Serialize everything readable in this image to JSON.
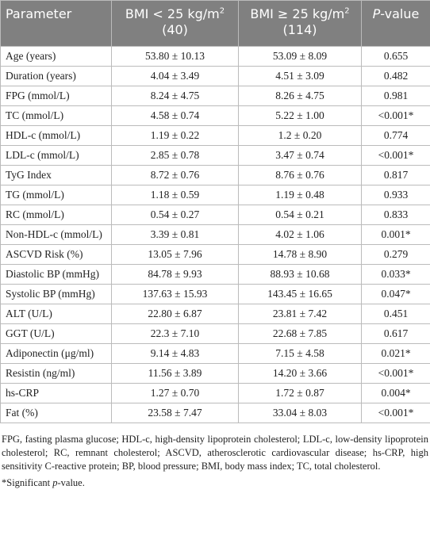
{
  "table": {
    "header": [
      {
        "text": "Parameter"
      },
      {
        "text": "BMI < 25 kg/m",
        "sup": "2",
        "sub": "(40)"
      },
      {
        "text": "BMI ≥ 25 kg/m",
        "sup": "2",
        "sub": "(114)"
      },
      {
        "italic": "P",
        "text": "-value"
      }
    ],
    "rows": [
      [
        "Age (years)",
        "53.80 ± 10.13",
        "53.09 ± 8.09",
        "0.655"
      ],
      [
        "Duration (years)",
        "4.04 ± 3.49",
        "4.51 ± 3.09",
        "0.482"
      ],
      [
        "FPG (mmol/L)",
        "8.24 ± 4.75",
        "8.26 ± 4.75",
        "0.981"
      ],
      [
        "TC (mmol/L)",
        "4.58 ± 0.74",
        "5.22 ± 1.00",
        "<0.001*"
      ],
      [
        "HDL-c (mmol/L)",
        "1.19 ± 0.22",
        "1.2 ± 0.20",
        "0.774"
      ],
      [
        "LDL-c (mmol/L)",
        "2.85 ± 0.78",
        "3.47 ± 0.74",
        "<0.001*"
      ],
      [
        "TyG Index",
        "8.72 ± 0.76",
        "8.76 ± 0.76",
        "0.817"
      ],
      [
        "TG (mmol/L)",
        "1.18 ± 0.59",
        "1.19 ± 0.48",
        "0.933"
      ],
      [
        "RC (mmol/L)",
        "0.54 ± 0.27",
        "0.54 ± 0.21",
        "0.833"
      ],
      [
        "Non-HDL-c (mmol/L)",
        "3.39 ± 0.81",
        "4.02 ± 1.06",
        "0.001*"
      ],
      [
        "ASCVD Risk (%)",
        "13.05 ± 7.96",
        "14.78 ± 8.90",
        "0.279"
      ],
      [
        "Diastolic BP (mmHg)",
        "84.78 ± 9.93",
        "88.93 ± 10.68",
        "0.033*"
      ],
      [
        "Systolic BP (mmHg)",
        "137.63 ± 15.93",
        "143.45 ± 16.65",
        "0.047*"
      ],
      [
        "ALT (U/L)",
        "22.80 ± 6.87",
        "23.81 ± 7.42",
        "0.451"
      ],
      [
        "GGT (U/L)",
        "22.3 ± 7.10",
        "22.68 ± 7.85",
        "0.617"
      ],
      [
        "Adiponectin (μg/ml)",
        "9.14 ± 4.83",
        "7.15 ± 4.58",
        "0.021*"
      ],
      [
        "Resistin (ng/ml)",
        "11.56 ± 3.89",
        "14.20 ± 3.66",
        "<0.001*"
      ],
      [
        "hs-CRP",
        "1.27 ± 0.70",
        "1.72 ± 0.87",
        "0.004*"
      ],
      [
        "Fat (%)",
        "23.58 ± 7.47",
        "33.04 ± 8.03",
        "<0.001*"
      ]
    ]
  },
  "footnote": {
    "abbreviations": "FPG, fasting plasma glucose; HDL-c, high-density lipoprotein cholesterol; LDL-c, low-density lipoprotein cholesterol; RC, remnant cholesterol; ASCVD, atherosclerotic cardiovascular disease; hs-CRP, high sensitivity C-reactive protein; BP, blood pressure; BMI, body mass index; TC, total cholesterol.",
    "significance": {
      "before": "*Significant ",
      "italic": "p",
      "after": "-value."
    }
  }
}
